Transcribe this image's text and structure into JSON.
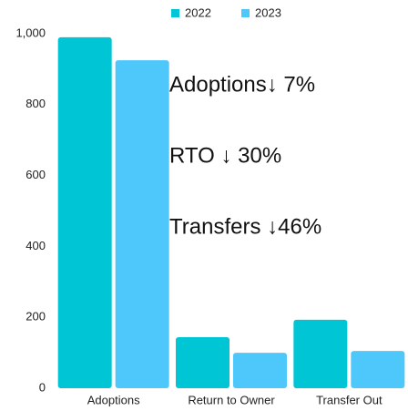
{
  "chart_data": {
    "type": "bar",
    "categories": [
      "Adoptions",
      "Return to Owner",
      "Transfer Out"
    ],
    "series": [
      {
        "name": "2022",
        "color": "#00c5d4",
        "values": [
          990,
          144,
          193
        ]
      },
      {
        "name": "2023",
        "color": "#4ec8fb",
        "values": [
          925,
          100,
          105
        ]
      }
    ],
    "ylim": [
      0,
      1000
    ],
    "yticks": [
      0,
      200,
      400,
      600,
      800,
      {
        "value": 1000,
        "label": "1,000"
      }
    ],
    "grid": false,
    "legend": "top",
    "annotations": [
      "Adoptions↓ 7%",
      "RTO ↓ 30%",
      "Transfers ↓46%"
    ]
  }
}
